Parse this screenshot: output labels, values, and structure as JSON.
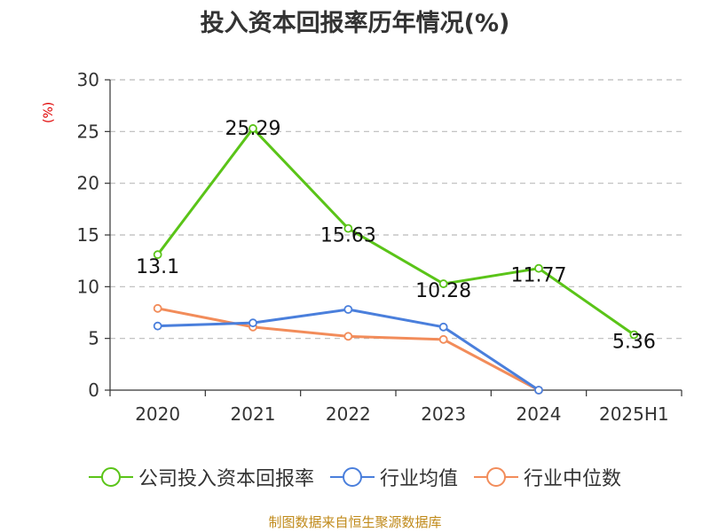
{
  "chart_data": {
    "type": "line",
    "title": "投入资本回报率历年情况(%)",
    "unit": "(%)",
    "categories": [
      "2020",
      "2021",
      "2022",
      "2023",
      "2024",
      "2025H1"
    ],
    "ylim": [
      0,
      30
    ],
    "yticks": [
      0,
      5,
      10,
      15,
      20,
      25,
      30
    ],
    "grid": true,
    "legend_position": "bottom",
    "series": [
      {
        "name": "公司投入资本回报率",
        "color": "#5ac418",
        "values": [
          13.1,
          25.29,
          15.63,
          10.28,
          11.77,
          5.36
        ],
        "labels": [
          "13.1",
          "25.29",
          "15.63",
          "10.28",
          "11.77",
          "5.36"
        ]
      },
      {
        "name": "行业均值",
        "color": "#4a7fdc",
        "values": [
          6.2,
          6.5,
          7.8,
          6.1,
          0.0,
          null
        ]
      },
      {
        "name": "行业中位数",
        "color": "#f28c5a",
        "values": [
          7.9,
          6.1,
          5.2,
          4.9,
          0.0,
          null
        ]
      }
    ]
  },
  "source": "制图数据来自恒生聚源数据库"
}
